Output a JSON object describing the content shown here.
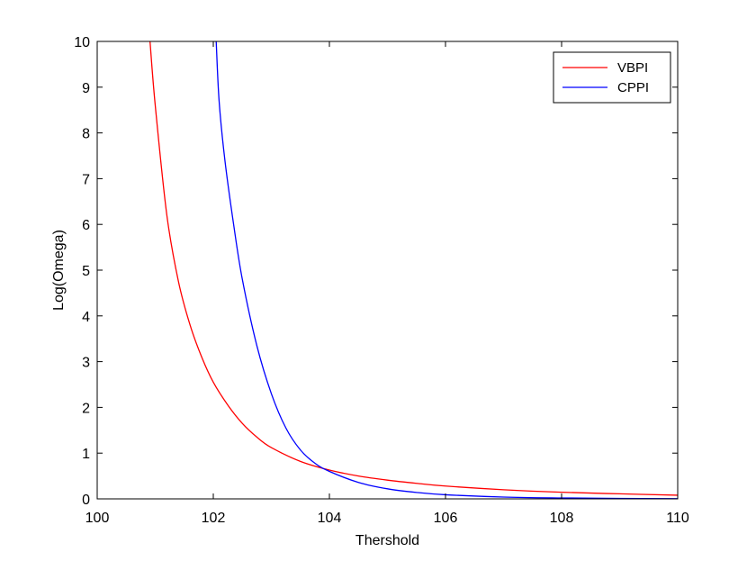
{
  "chart_data": {
    "type": "line",
    "title": "",
    "xlabel": "Thershold",
    "ylabel": "Log(Omega)",
    "xlim": [
      100,
      110
    ],
    "ylim": [
      0,
      10
    ],
    "xticks": [
      100,
      102,
      104,
      106,
      108,
      110
    ],
    "yticks": [
      0,
      1,
      2,
      3,
      4,
      5,
      6,
      7,
      8,
      9,
      10
    ],
    "grid": false,
    "legend_position": "top-right",
    "series": [
      {
        "name": "VBPI",
        "color": "#ff0000",
        "x": [
          100.91,
          101.0,
          101.2,
          101.4,
          101.6,
          101.8,
          102.0,
          102.25,
          102.5,
          102.75,
          103.0,
          103.5,
          104.0,
          104.5,
          105.0,
          105.5,
          106.0,
          107.0,
          108.0,
          109.0,
          110.0
        ],
        "y": [
          10.0,
          8.6,
          6.2,
          4.75,
          3.8,
          3.1,
          2.55,
          2.05,
          1.65,
          1.35,
          1.12,
          0.82,
          0.63,
          0.5,
          0.41,
          0.34,
          0.28,
          0.2,
          0.145,
          0.11,
          0.08
        ]
      },
      {
        "name": "CPPI",
        "color": "#0000ff",
        "x": [
          102.05,
          102.1,
          102.2,
          102.35,
          102.5,
          102.75,
          103.0,
          103.25,
          103.5,
          103.75,
          104.0,
          104.5,
          105.0,
          105.5,
          106.0,
          107.0,
          108.0,
          109.0,
          110.0
        ],
        "y": [
          10.0,
          8.7,
          7.4,
          6.0,
          4.8,
          3.35,
          2.3,
          1.55,
          1.07,
          0.78,
          0.6,
          0.36,
          0.22,
          0.14,
          0.09,
          0.04,
          0.02,
          0.01,
          0.005
        ]
      }
    ]
  }
}
